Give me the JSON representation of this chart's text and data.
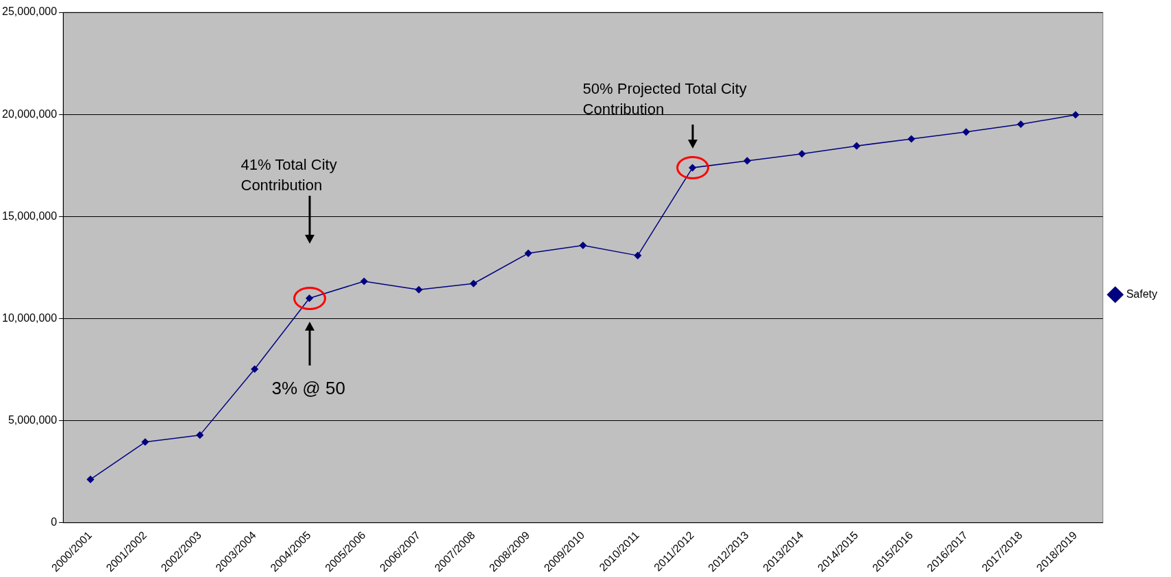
{
  "chart_data": {
    "type": "line",
    "categories": [
      "2000/2001",
      "2001/2002",
      "2002/2003",
      "2003/2004",
      "2004/2005",
      "2005/2006",
      "2006/2007",
      "2007/2008",
      "2008/2009",
      "2009/2010",
      "2010/2011",
      "2011/2012",
      "2012/2013",
      "2013/2014",
      "2014/2015",
      "2015/2016",
      "2016/2017",
      "2017/2018",
      "2018/2019"
    ],
    "series": [
      {
        "name": "Safety",
        "color": "#000080",
        "values": [
          2130000,
          3960000,
          4300000,
          7530000,
          11000000,
          11830000,
          11420000,
          11720000,
          13200000,
          13590000,
          13090000,
          17390000,
          17730000,
          18070000,
          18460000,
          18800000,
          19140000,
          19520000,
          19980000
        ]
      }
    ],
    "ylim": [
      0,
      25000000
    ],
    "yticks": [
      {
        "value": 0,
        "label": "0"
      },
      {
        "value": 5000000,
        "label": "5,000,000"
      },
      {
        "value": 10000000,
        "label": "10,000,000"
      },
      {
        "value": 15000000,
        "label": "15,000,000"
      },
      {
        "value": 20000000,
        "label": "20,000,000"
      },
      {
        "value": 25000000,
        "label": "25,000,000"
      }
    ],
    "grid": "y",
    "legend": "right",
    "marker": "diamond",
    "line_style": "solid",
    "annotations": [
      "41% Total City Contribution",
      "3% @ 50",
      "50% Projected Total City Contribution"
    ]
  }
}
